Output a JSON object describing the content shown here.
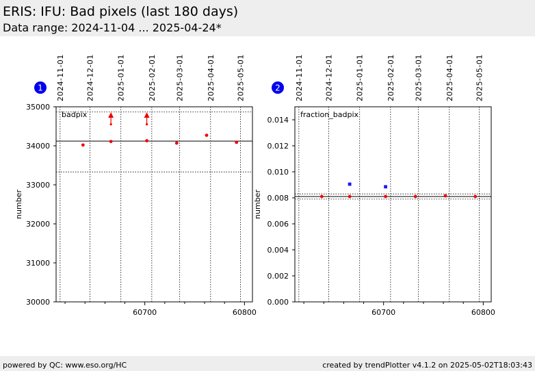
{
  "header": {
    "title": "ERIS: IFU: Bad pixels (last 180 days)",
    "subtitle": "Data range: 2024-11-04 ... 2025-04-24*"
  },
  "footer": {
    "left": "powered by QC: www.eso.org/HC",
    "right": "created by trendPlotter v4.1.2 on 2025-05-02T18:03:43"
  },
  "colors": {
    "points": "#ee0000",
    "points_alt": "#1a1aee",
    "badge": "#0000ee",
    "header_bg": "#eeeeee"
  },
  "chart_data": [
    {
      "type": "scatter",
      "badge": "1",
      "label": "badpix",
      "ylabel": "number",
      "xlim": [
        60611,
        60808
      ],
      "ylim": [
        30000,
        35000
      ],
      "x_ticks": [
        60700,
        60800
      ],
      "x_minor_ticks": [
        60620,
        60640,
        60660,
        60680,
        60720,
        60740,
        60760,
        60780
      ],
      "y_ticks": [
        30000,
        31000,
        32000,
        33000,
        34000,
        35000
      ],
      "date_ticks": [
        {
          "label": "2024-11-01",
          "mjd": 60615
        },
        {
          "label": "2024-12-01",
          "mjd": 60645
        },
        {
          "label": "2025-01-01",
          "mjd": 60676
        },
        {
          "label": "2025-02-01",
          "mjd": 60707
        },
        {
          "label": "2025-03-01",
          "mjd": 60735
        },
        {
          "label": "2025-04-01",
          "mjd": 60766
        },
        {
          "label": "2025-05-01",
          "mjd": 60796
        }
      ],
      "ref_lines": {
        "mean": 34120,
        "upper": 34870,
        "lower": 33330
      },
      "points": [
        {
          "x": 60638,
          "y": 34020
        },
        {
          "x": 60666,
          "y": 34110
        },
        {
          "x": 60702,
          "y": 34130
        },
        {
          "x": 60732,
          "y": 34070
        },
        {
          "x": 60762,
          "y": 34270
        },
        {
          "x": 60792,
          "y": 34090
        }
      ],
      "outliers": [
        {
          "x": 60666,
          "y": 34550
        },
        {
          "x": 60702,
          "y": 34550
        }
      ]
    },
    {
      "type": "scatter",
      "badge": "2",
      "label": "fraction_badpix",
      "ylabel": "number",
      "xlim": [
        60611,
        60808
      ],
      "ylim": [
        0,
        0.015
      ],
      "x_ticks": [
        60700,
        60800
      ],
      "x_minor_ticks": [
        60620,
        60640,
        60660,
        60680,
        60720,
        60740,
        60760,
        60780
      ],
      "y_ticks": [
        0.0,
        0.002,
        0.004,
        0.006,
        0.008,
        0.01,
        0.012,
        0.014
      ],
      "y_tick_labels": [
        "0.000",
        "0.002",
        "0.004",
        "0.006",
        "0.008",
        "0.010",
        "0.012",
        "0.014"
      ],
      "date_ticks": [
        {
          "label": "2024-11-01",
          "mjd": 60615
        },
        {
          "label": "2024-12-01",
          "mjd": 60645
        },
        {
          "label": "2025-01-01",
          "mjd": 60676
        },
        {
          "label": "2025-02-01",
          "mjd": 60707
        },
        {
          "label": "2025-03-01",
          "mjd": 60735
        },
        {
          "label": "2025-04-01",
          "mjd": 60766
        },
        {
          "label": "2025-05-01",
          "mjd": 60796
        }
      ],
      "ref_lines": {
        "mean": 0.0081,
        "upper": 0.0083,
        "lower": 0.0079
      },
      "points": [
        {
          "x": 60638,
          "y": 0.0081
        },
        {
          "x": 60666,
          "y": 0.0081
        },
        {
          "x": 60702,
          "y": 0.0081
        },
        {
          "x": 60732,
          "y": 0.0081
        },
        {
          "x": 60762,
          "y": 0.00815
        },
        {
          "x": 60792,
          "y": 0.0081
        }
      ],
      "points_alt": [
        {
          "x": 60666,
          "y": 0.00905
        },
        {
          "x": 60702,
          "y": 0.00885
        }
      ]
    }
  ]
}
